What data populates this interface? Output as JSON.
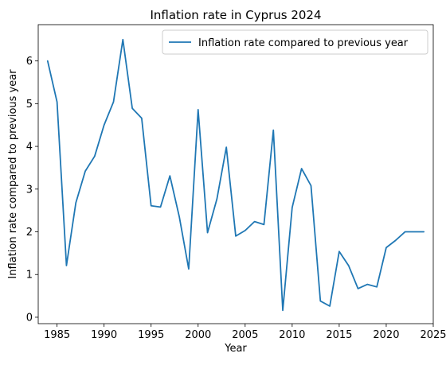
{
  "chart_data": {
    "type": "line",
    "title": "Inflation rate in Cyprus 2024",
    "xlabel": "Year",
    "ylabel": "Inflation rate compared to previous year",
    "legend_position": "top-right",
    "grid": false,
    "xlim": [
      1983,
      2025
    ],
    "ylim": [
      -0.15,
      6.85
    ],
    "xticks": [
      1985,
      1990,
      1995,
      2000,
      2005,
      2010,
      2015,
      2020,
      2025
    ],
    "yticks": [
      0,
      1,
      2,
      3,
      4,
      5,
      6
    ],
    "series": [
      {
        "name": "Inflation rate compared to previous year",
        "color": "#1f77b4",
        "x": [
          1984,
          1985,
          1986,
          1987,
          1988,
          1989,
          1990,
          1991,
          1992,
          1993,
          1994,
          1995,
          1996,
          1997,
          1998,
          1999,
          2000,
          2001,
          2002,
          2003,
          2004,
          2005,
          2006,
          2007,
          2008,
          2009,
          2010,
          2011,
          2012,
          2013,
          2014,
          2015,
          2016,
          2017,
          2018,
          2019,
          2020,
          2021,
          2022,
          2023,
          2024
        ],
        "y": [
          6.0,
          5.04,
          1.21,
          2.68,
          3.42,
          3.77,
          4.5,
          5.04,
          6.5,
          4.89,
          4.66,
          2.61,
          2.58,
          3.31,
          2.35,
          1.13,
          4.86,
          1.98,
          2.77,
          3.98,
          1.9,
          2.03,
          2.24,
          2.17,
          4.38,
          0.16,
          2.57,
          3.48,
          3.08,
          0.38,
          0.26,
          1.54,
          1.21,
          0.67,
          0.77,
          0.71,
          1.63,
          1.8,
          2.0,
          2.0,
          2.0
        ]
      }
    ]
  }
}
